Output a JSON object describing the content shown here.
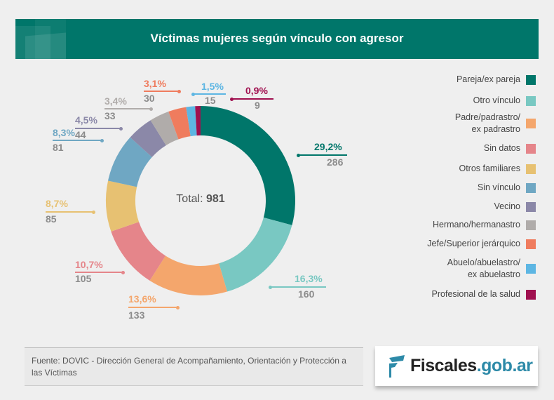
{
  "header": {
    "title": "Víctimas mujeres según vínculo con agresor"
  },
  "chart_data": {
    "type": "pie",
    "title": "Víctimas mujeres según vínculo con agresor",
    "total_label": "Total:",
    "total": "981",
    "categories": [
      "Pareja/ex pareja",
      "Otro vínculo",
      "Padre/padrastro/ ex padrastro",
      "Sin datos",
      "Otros familiares",
      "Sin vínculo",
      "Vecino",
      "Hermano/hermanastro",
      "Jefe/Superior jerárquico",
      "Abuelo/abuelastro/ ex abuelastro",
      "Profesional de la salud"
    ],
    "values": [
      286,
      160,
      133,
      105,
      85,
      81,
      44,
      33,
      30,
      15,
      9
    ],
    "percent_labels": [
      "29,2%",
      "16,3%",
      "13,6%",
      "10,7%",
      "8,7%",
      "8,3%",
      "4,5%",
      "3,4%",
      "3,1%",
      "1,5%",
      "0,9%"
    ],
    "count_labels": [
      "286",
      "160",
      "133",
      "105",
      "85",
      "81",
      "44",
      "33",
      "30",
      "15",
      "9"
    ],
    "colors": [
      "#00766a",
      "#79c8c2",
      "#f4a66c",
      "#e5858a",
      "#e7c172",
      "#6fa7c3",
      "#8b88a8",
      "#b0acaa",
      "#ef7c5e",
      "#5db6e3",
      "#a0104f"
    ],
    "legend_placement": "right"
  },
  "source": "Fuente: DOVIC - Dirección General de Acompañamiento, Orientación y Protección a las Víctimas",
  "logo": {
    "part1": "Fiscales",
    "part2": ".gob.ar"
  }
}
